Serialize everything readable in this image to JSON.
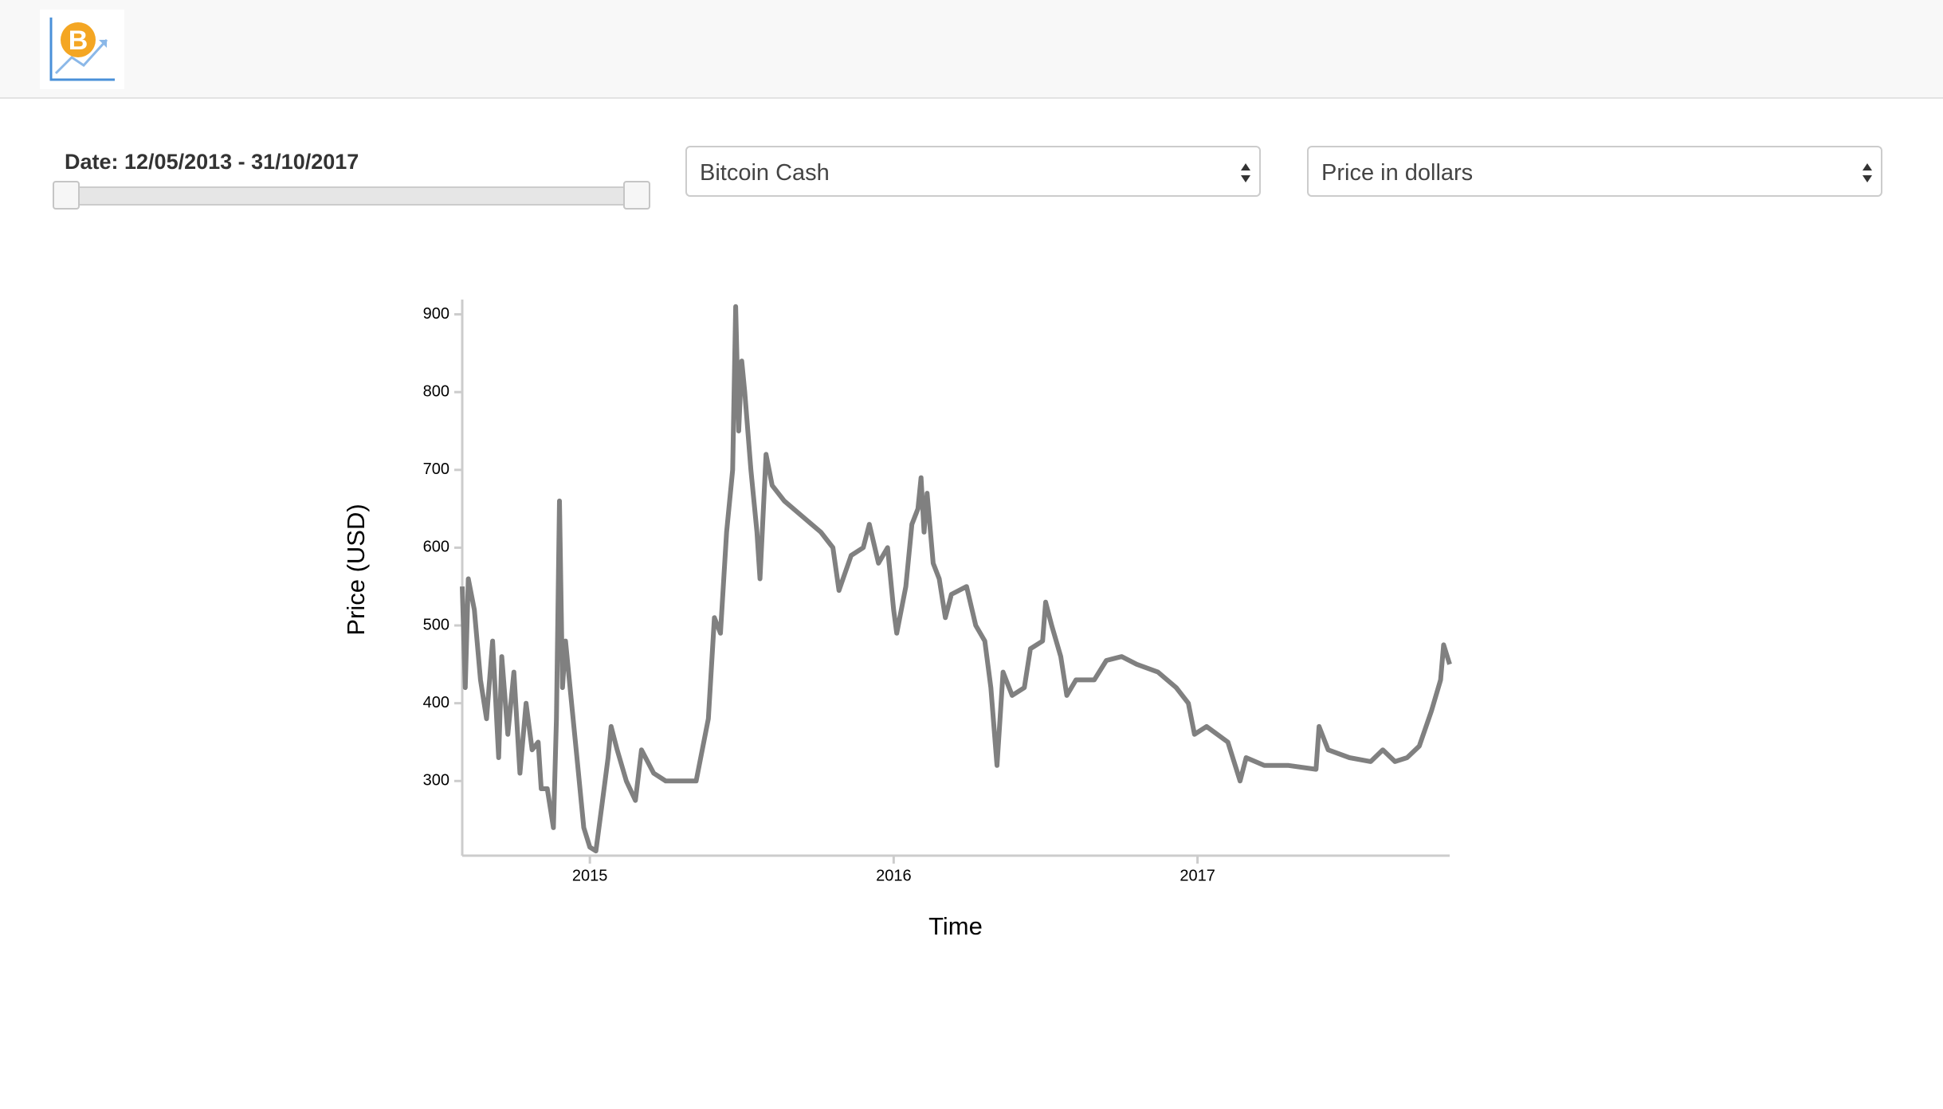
{
  "controls": {
    "date_label": "Date: 12/05/2013 - 31/10/2017",
    "coin_select": "Bitcoin Cash",
    "metric_select": "Price in dollars"
  },
  "chart_data": {
    "type": "line",
    "x_label": "Time",
    "y_label": "Price (USD)",
    "color": "#808080",
    "x": [
      2014.58,
      2014.59,
      2014.6,
      2014.62,
      2014.64,
      2014.66,
      2014.68,
      2014.7,
      2014.71,
      2014.73,
      2014.75,
      2014.77,
      2014.79,
      2014.81,
      2014.83,
      2014.84,
      2014.86,
      2014.88,
      2014.89,
      2014.9,
      2014.91,
      2014.92,
      2014.94,
      2014.96,
      2014.98,
      2015.0,
      2015.02,
      2015.04,
      2015.06,
      2015.07,
      2015.09,
      2015.12,
      2015.15,
      2015.17,
      2015.21,
      2015.25,
      2015.3,
      2015.35,
      2015.39,
      2015.41,
      2015.43,
      2015.45,
      2015.47,
      2015.48,
      2015.49,
      2015.5,
      2015.51,
      2015.53,
      2015.55,
      2015.56,
      2015.58,
      2015.6,
      2015.64,
      2015.7,
      2015.76,
      2015.8,
      2015.82,
      2015.86,
      2015.9,
      2015.92,
      2015.95,
      2015.98,
      2016.0,
      2016.01,
      2016.04,
      2016.06,
      2016.08,
      2016.09,
      2016.1,
      2016.11,
      2016.13,
      2016.15,
      2016.17,
      2016.19,
      2016.24,
      2016.27,
      2016.3,
      2016.32,
      2016.34,
      2016.36,
      2016.39,
      2016.43,
      2016.45,
      2016.49,
      2016.5,
      2016.52,
      2016.55,
      2016.57,
      2016.6,
      2016.66,
      2016.7,
      2016.75,
      2016.8,
      2016.87,
      2016.93,
      2016.97,
      2016.99,
      2017.03,
      2017.1,
      2017.14,
      2017.16,
      2017.22,
      2017.3,
      2017.39,
      2017.4,
      2017.43,
      2017.5,
      2017.57,
      2017.61,
      2017.65,
      2017.69,
      2017.73,
      2017.77,
      2017.8,
      2017.81,
      2017.83
    ],
    "values": [
      550,
      420,
      560,
      520,
      430,
      380,
      480,
      330,
      460,
      360,
      440,
      310,
      400,
      340,
      350,
      290,
      290,
      240,
      380,
      660,
      420,
      480,
      400,
      320,
      240,
      215,
      210,
      270,
      330,
      370,
      340,
      300,
      275,
      340,
      310,
      300,
      300,
      300,
      380,
      510,
      490,
      620,
      700,
      910,
      750,
      840,
      800,
      700,
      620,
      560,
      720,
      680,
      660,
      640,
      620,
      600,
      545,
      590,
      600,
      630,
      580,
      600,
      520,
      490,
      550,
      630,
      650,
      690,
      620,
      670,
      580,
      560,
      510,
      540,
      550,
      500,
      480,
      420,
      320,
      440,
      410,
      420,
      470,
      480,
      530,
      500,
      460,
      410,
      430,
      430,
      455,
      460,
      450,
      440,
      420,
      400,
      360,
      370,
      350,
      300,
      330,
      320,
      320,
      315,
      370,
      340,
      330,
      325,
      340,
      325,
      330,
      345,
      390,
      430,
      475,
      450
    ],
    "xlim": [
      2014.58,
      2017.83
    ],
    "ylim": [
      204,
      919
    ],
    "xticks": [
      2015,
      2016,
      2017
    ],
    "yticks": [
      300,
      400,
      500,
      600,
      700,
      800,
      900
    ]
  }
}
